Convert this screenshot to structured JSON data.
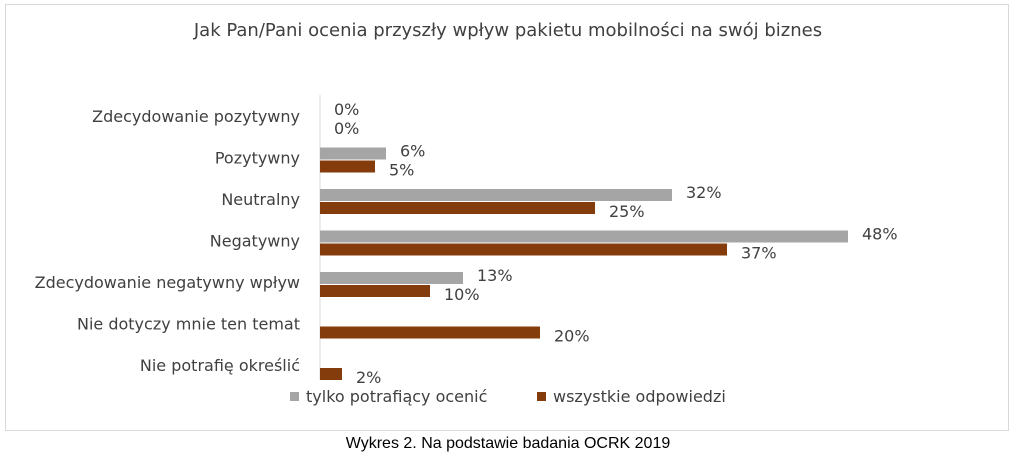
{
  "chart_data": {
    "type": "bar",
    "orientation": "horizontal",
    "title": "Jak Pan/Pani ocenia przyszły wpływ pakietu mobilności na swój biznes",
    "categories": [
      "Zdecydowanie pozytywny",
      "Pozytywny",
      "Neutralny",
      "Negatywny",
      "Zdecydowanie negatywny wpływ",
      "Nie dotyczy mnie ten temat",
      "Nie potrafię określić"
    ],
    "series": [
      {
        "name": "tylko potrafiący ocenić",
        "color": "#a5a5a5",
        "values": [
          0,
          6,
          32,
          48,
          13,
          null,
          null
        ],
        "labels": [
          "0%",
          "6%",
          "32%",
          "48%",
          "13%",
          null,
          null
        ]
      },
      {
        "name": "wszystkie odpowiedzi",
        "color": "#843c0c",
        "values": [
          0,
          5,
          25,
          37,
          10,
          20,
          2
        ],
        "labels": [
          "0%",
          "5%",
          "25%",
          "37%",
          "10%",
          "20%",
          "2%"
        ]
      }
    ],
    "xlim": [
      0,
      50
    ],
    "grid": false,
    "legend_position": "bottom",
    "axis_line_color": "#d9d9d9"
  },
  "caption": "Wykres 2. Na podstawie badania OCRK 2019"
}
